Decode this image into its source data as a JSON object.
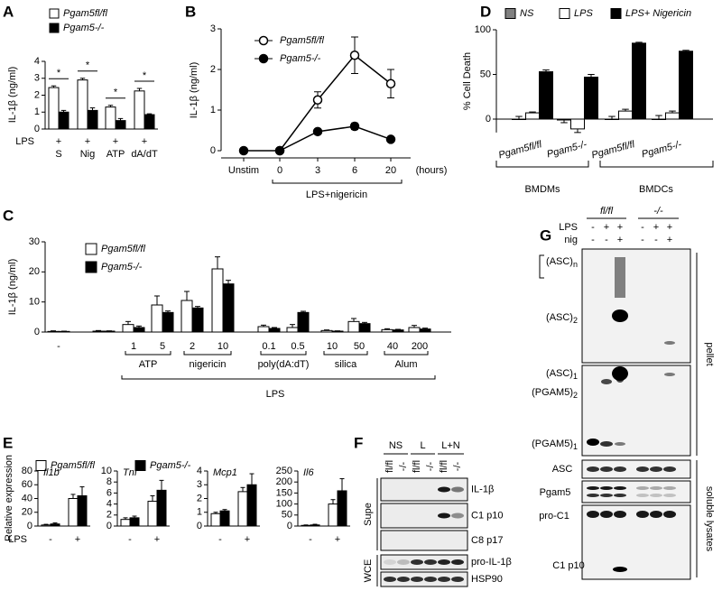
{
  "chart_data": [
    {
      "type": "bar",
      "panel": "A",
      "ylabel": "IL-1β (ng/ml)",
      "ylim": [
        0,
        4
      ],
      "yticks": [
        0,
        1,
        2,
        3,
        4
      ],
      "row_label": "LPS",
      "treatment": [
        "+",
        "+",
        "+",
        "+"
      ],
      "categories": [
        "S",
        "Nig",
        "ATP",
        "dA/dT"
      ],
      "series": [
        {
          "name": "Pgam5fl/fl",
          "color": "#ffffff",
          "values": [
            2.45,
            2.9,
            1.3,
            2.25
          ],
          "errors": [
            0.1,
            0.1,
            0.1,
            0.15
          ]
        },
        {
          "name": "Pgam5-/-",
          "color": "#000000",
          "values": [
            1.0,
            1.1,
            0.5,
            0.85
          ],
          "errors": [
            0.1,
            0.15,
            0.12,
            0.05
          ]
        }
      ],
      "annotations": [
        "*",
        "*",
        "*",
        "*"
      ]
    },
    {
      "type": "line",
      "panel": "B",
      "ylabel": "IL-1β (ng/ml)",
      "ylim": [
        0,
        3
      ],
      "yticks": [
        0,
        1,
        2,
        3
      ],
      "categories": [
        "Unstim",
        "0",
        "3",
        "6",
        "20"
      ],
      "xlabel": "(hours)",
      "bracket_label": "LPS+nigericin",
      "series": [
        {
          "name": "Pgam5fl/fl",
          "color": "#000000",
          "marker": "open",
          "values": [
            null,
            0,
            1.25,
            2.35,
            1.65
          ],
          "errors": [
            null,
            0,
            0.2,
            0.45,
            0.35
          ]
        },
        {
          "name": "Pgam5-/-",
          "color": "#000000",
          "marker": "filled",
          "values": [
            0,
            0,
            0.47,
            0.6,
            0.28
          ],
          "errors": [
            0,
            0,
            0.05,
            0.08,
            0.06
          ]
        }
      ]
    },
    {
      "type": "bar",
      "panel": "D",
      "ylabel": "% Cell Death",
      "ylim": [
        -15,
        100
      ],
      "yticks": [
        0,
        50,
        100
      ],
      "categories": [
        "Pgam5fl/fl",
        "Pgam5-/-",
        "Pgam5fl/fl",
        "Pgam5-/-"
      ],
      "groups": [
        "BMDMs",
        "BMDCs"
      ],
      "series": [
        {
          "name": "NS",
          "color": "#808080",
          "values": [
            0,
            -1,
            0,
            0
          ],
          "errors": [
            3,
            3,
            3,
            4
          ]
        },
        {
          "name": "LPS",
          "color": "#ffffff",
          "values": [
            7,
            -11,
            9,
            7
          ],
          "errors": [
            1,
            4,
            2,
            2
          ]
        },
        {
          "name": "LPS+ Nigericin",
          "color": "#000000",
          "values": [
            53,
            47,
            85,
            76
          ],
          "errors": [
            2,
            3,
            1,
            1
          ]
        }
      ]
    },
    {
      "type": "bar",
      "panel": "C",
      "ylabel": "IL-1β (ng/ml)",
      "ylim": [
        0,
        30
      ],
      "yticks": [
        0,
        10,
        20,
        30
      ],
      "categories": [
        "-",
        null,
        "1",
        "5",
        "2",
        "10",
        "0.1",
        "0.5",
        "10",
        "50",
        "40",
        "200"
      ],
      "groups": [
        "ATP",
        "nigericin",
        "poly(dA:dT)",
        "silica",
        "Alum"
      ],
      "row_label": "LPS",
      "series": [
        {
          "name": "Pgam5fl/fl",
          "color": "#ffffff",
          "values": [
            0.2,
            0.3,
            2.5,
            9,
            10.5,
            21,
            1.8,
            1.5,
            0.5,
            3.5,
            0.8,
            1.5
          ],
          "errors": [
            0.2,
            0.2,
            1,
            3,
            3,
            4,
            0.5,
            1,
            0.2,
            1,
            0.3,
            0.7
          ]
        },
        {
          "name": "Pgam5-/-",
          "color": "#000000",
          "values": [
            0.2,
            0.3,
            1.5,
            6.5,
            8,
            16,
            1.2,
            6.5,
            0.3,
            2.8,
            0.7,
            1.0
          ],
          "errors": [
            0.1,
            0.1,
            0.5,
            0.5,
            0.5,
            1.2,
            0.3,
            0.4,
            0.1,
            0.4,
            0.2,
            0.3
          ]
        }
      ]
    },
    {
      "type": "bar",
      "panel": "E",
      "title": "Il1b",
      "ylabel": "Relative expression",
      "row_label": "LPS",
      "ylim": [
        0,
        80
      ],
      "yticks": [
        0,
        20,
        40,
        60,
        80
      ],
      "categories": [
        "-",
        "+"
      ],
      "series": [
        {
          "name": "Pgam5fl/fl",
          "color": "#ffffff",
          "values": [
            1.5,
            40
          ],
          "errors": [
            1,
            6
          ]
        },
        {
          "name": "Pgam5-/-",
          "color": "#000000",
          "values": [
            3,
            44
          ],
          "errors": [
            1.5,
            13
          ]
        }
      ]
    },
    {
      "type": "bar",
      "title": "Tnf",
      "ylim": [
        0,
        10
      ],
      "yticks": [
        0,
        2,
        4,
        6,
        8,
        10
      ],
      "categories": [
        "-",
        "+"
      ],
      "series": [
        {
          "color": "#ffffff",
          "values": [
            1.2,
            4.5
          ],
          "errors": [
            0.3,
            1
          ]
        },
        {
          "color": "#000000",
          "values": [
            1.5,
            6.5
          ],
          "errors": [
            0.3,
            1.8
          ]
        }
      ]
    },
    {
      "type": "bar",
      "title": "Mcp1",
      "ylim": [
        0,
        4
      ],
      "yticks": [
        0,
        1,
        2,
        3,
        4
      ],
      "categories": [
        "-",
        "+"
      ],
      "series": [
        {
          "color": "#ffffff",
          "values": [
            0.9,
            2.5
          ],
          "errors": [
            0.1,
            0.3
          ]
        },
        {
          "color": "#000000",
          "values": [
            1.1,
            3
          ],
          "errors": [
            0.1,
            0.8
          ]
        }
      ]
    },
    {
      "type": "bar",
      "title": "Il6",
      "ylim": [
        0,
        250
      ],
      "yticks": [
        0,
        50,
        100,
        150,
        200,
        250
      ],
      "categories": [
        "-",
        "+"
      ],
      "series": [
        {
          "color": "#ffffff",
          "values": [
            3,
            100
          ],
          "errors": [
            2,
            20
          ]
        },
        {
          "color": "#000000",
          "values": [
            5,
            160
          ],
          "errors": [
            3,
            55
          ]
        }
      ]
    }
  ],
  "blot_f": {
    "panel": "F",
    "groups": [
      "NS",
      "L",
      "L+N"
    ],
    "lanes": [
      "fl/fl",
      "-/-",
      "fl/fl",
      "-/-",
      "fl/fl",
      "-/-"
    ],
    "bands": [
      "IL-1β",
      "C1 p10",
      "C8 p17",
      "pro-IL-1β",
      "HSP90"
    ],
    "sections": [
      "Supe",
      "WCE"
    ]
  },
  "blot_g": {
    "panel": "G",
    "groups": [
      "fl/fl",
      "-/-"
    ],
    "rows": [
      {
        "label": "LPS",
        "marks": [
          "-",
          "+",
          "+",
          "-",
          "+",
          "+"
        ]
      },
      {
        "label": "nig",
        "marks": [
          "-",
          "-",
          "+",
          "-",
          "-",
          "+"
        ]
      }
    ],
    "pellet_labels": [
      {
        "main": "(ASC)",
        "sub": "n"
      },
      {
        "main": "(ASC)",
        "sub": "2"
      },
      {
        "main": "(ASC)",
        "sub": "1"
      },
      {
        "main": "(PGAM5)",
        "sub": "2"
      },
      {
        "main": "(PGAM5)",
        "sub": "1"
      }
    ],
    "lysate_labels": [
      "ASC",
      "Pgam5",
      "pro-C1",
      "C1 p10"
    ],
    "sections": [
      "pellet",
      "soluble lysates"
    ]
  }
}
